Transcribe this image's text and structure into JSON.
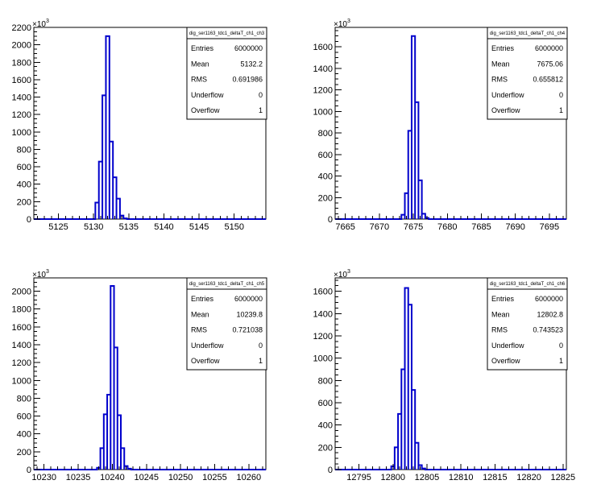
{
  "chart_data": [
    {
      "type": "histogram",
      "title": "dig_ser1163_tdc1_deltaT_ch1_ch3",
      "xlim": [
        5121.5,
        5154.5
      ],
      "xticks": [
        5125,
        5130,
        5135,
        5140,
        5145,
        5150
      ],
      "ylim": [
        0,
        2200
      ],
      "yticks": [
        0,
        200,
        400,
        600,
        800,
        1000,
        1200,
        1400,
        1600,
        1800,
        2000,
        2200
      ],
      "multiplier": "10",
      "multiplier_exp": "3",
      "bin_width": 0.5,
      "bins": [
        {
          "x": 5130.5,
          "y": 190
        },
        {
          "x": 5131.0,
          "y": 660
        },
        {
          "x": 5131.5,
          "y": 1420
        },
        {
          "x": 5132.0,
          "y": 2100
        },
        {
          "x": 5132.5,
          "y": 890
        },
        {
          "x": 5133.0,
          "y": 480
        },
        {
          "x": 5133.5,
          "y": 235
        },
        {
          "x": 5134.0,
          "y": 40
        },
        {
          "x": 5134.5,
          "y": 8
        }
      ],
      "stats": [
        {
          "label": "Entries",
          "value": "6000000"
        },
        {
          "label": "Mean",
          "value": "5132.2"
        },
        {
          "label": "RMS",
          "value": "0.691986"
        },
        {
          "label": "Underflow",
          "value": "0"
        },
        {
          "label": "Overflow",
          "value": "1"
        }
      ]
    },
    {
      "type": "histogram",
      "title": "dig_ser1163_tdc1_deltaT_ch1_ch4",
      "xlim": [
        7663.5,
        7697.5
      ],
      "xticks": [
        7665,
        7670,
        7675,
        7680,
        7685,
        7690,
        7695
      ],
      "ylim": [
        0,
        1780
      ],
      "yticks": [
        0,
        200,
        400,
        600,
        800,
        1000,
        1200,
        1400,
        1600
      ],
      "multiplier": "10",
      "multiplier_exp": "3",
      "bin_width": 0.5,
      "bins": [
        {
          "x": 7673.5,
          "y": 40
        },
        {
          "x": 7674.0,
          "y": 240
        },
        {
          "x": 7674.5,
          "y": 820
        },
        {
          "x": 7675.0,
          "y": 1700
        },
        {
          "x": 7675.5,
          "y": 1085
        },
        {
          "x": 7676.0,
          "y": 360
        },
        {
          "x": 7676.5,
          "y": 50
        },
        {
          "x": 7677.0,
          "y": 10
        }
      ],
      "stats": [
        {
          "label": "Entries",
          "value": "6000000"
        },
        {
          "label": "Mean",
          "value": "7675.06"
        },
        {
          "label": "RMS",
          "value": "0.655812"
        },
        {
          "label": "Underflow",
          "value": "0"
        },
        {
          "label": "Overflow",
          "value": "1"
        }
      ]
    },
    {
      "type": "histogram",
      "title": "dig_ser1163_tdc1_deltaT_ch1_ch5",
      "xlim": [
        10228.5,
        10262.5
      ],
      "xticks": [
        10230,
        10235,
        10240,
        10245,
        10250,
        10255,
        10260
      ],
      "ylim": [
        0,
        2150
      ],
      "yticks": [
        0,
        200,
        400,
        600,
        800,
        1000,
        1200,
        1400,
        1600,
        1800,
        2000
      ],
      "multiplier": "10",
      "multiplier_exp": "3",
      "bin_width": 0.5,
      "bins": [
        {
          "x": 10238.0,
          "y": 20
        },
        {
          "x": 10238.5,
          "y": 240
        },
        {
          "x": 10239.0,
          "y": 620
        },
        {
          "x": 10239.5,
          "y": 840
        },
        {
          "x": 10240.0,
          "y": 2060
        },
        {
          "x": 10240.5,
          "y": 1370
        },
        {
          "x": 10241.0,
          "y": 610
        },
        {
          "x": 10241.5,
          "y": 240
        },
        {
          "x": 10242.0,
          "y": 40
        },
        {
          "x": 10242.5,
          "y": 10
        }
      ],
      "stats": [
        {
          "label": "Entries",
          "value": "6000000"
        },
        {
          "label": "Mean",
          "value": "10239.8"
        },
        {
          "label": "RMS",
          "value": "0.721038"
        },
        {
          "label": "Underflow",
          "value": "0"
        },
        {
          "label": "Overflow",
          "value": "1"
        }
      ]
    },
    {
      "type": "histogram",
      "title": "dig_ser1163_tdc1_deltaT_ch1_ch6",
      "xlim": [
        12791.5,
        12825.5
      ],
      "xticks": [
        12795,
        12800,
        12805,
        12810,
        12815,
        12820,
        12825
      ],
      "ylim": [
        0,
        1720
      ],
      "yticks": [
        0,
        200,
        400,
        600,
        800,
        1000,
        1200,
        1400,
        1600
      ],
      "multiplier": "10",
      "multiplier_exp": "3",
      "bin_width": 0.5,
      "bins": [
        {
          "x": 12800.0,
          "y": 30
        },
        {
          "x": 12800.5,
          "y": 200
        },
        {
          "x": 12801.0,
          "y": 500
        },
        {
          "x": 12801.5,
          "y": 900
        },
        {
          "x": 12802.0,
          "y": 1630
        },
        {
          "x": 12802.5,
          "y": 1480
        },
        {
          "x": 12803.0,
          "y": 715
        },
        {
          "x": 12803.5,
          "y": 240
        },
        {
          "x": 12804.0,
          "y": 40
        },
        {
          "x": 12804.5,
          "y": 10
        }
      ],
      "stats": [
        {
          "label": "Entries",
          "value": "6000000"
        },
        {
          "label": "Mean",
          "value": "12802.8"
        },
        {
          "label": "RMS",
          "value": "0.743523"
        },
        {
          "label": "Underflow",
          "value": "0"
        },
        {
          "label": "Overflow",
          "value": "1"
        }
      ]
    }
  ],
  "colors": {
    "histogram_line": "#0000cc",
    "axis": "#000000",
    "background": "#ffffff"
  }
}
